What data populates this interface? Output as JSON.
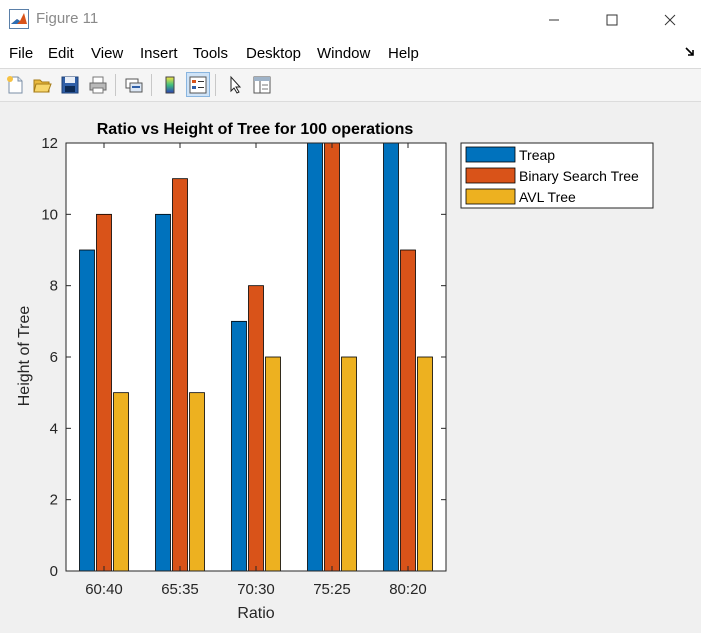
{
  "window": {
    "title": "Figure 11",
    "controls": [
      "minimize",
      "maximize",
      "close"
    ]
  },
  "menubar": {
    "items": [
      "File",
      "Edit",
      "View",
      "Insert",
      "Tools",
      "Desktop",
      "Window",
      "Help"
    ]
  },
  "toolbar": {
    "buttons": [
      "new-figure-icon",
      "open-file-icon",
      "save-icon",
      "print-icon",
      "link-plot-icon",
      "insert-colorbar-icon",
      "insert-legend-icon",
      "edit-plot-icon",
      "property-inspector-icon"
    ]
  },
  "colors": {
    "treap": "#0072BD",
    "bst": "#D95319",
    "avl": "#EDB120"
  },
  "chart_data": {
    "type": "bar",
    "title": "Ratio vs Height of Tree for 100 operations",
    "xlabel": "Ratio",
    "ylabel": "Height of Tree",
    "categories": [
      "60:40",
      "65:35",
      "70:30",
      "75:25",
      "80:20"
    ],
    "ylim": [
      0,
      12
    ],
    "yticks": [
      "0",
      "2",
      "4",
      "6",
      "8",
      "10",
      "12"
    ],
    "legend_position": "outside top-right",
    "grid": false,
    "series": [
      {
        "name": "Treap",
        "values": [
          9,
          10,
          7,
          12,
          12
        ]
      },
      {
        "name": "Binary Search Tree",
        "values": [
          10,
          11,
          8,
          12,
          9
        ]
      },
      {
        "name": "AVL Tree",
        "values": [
          5,
          5,
          6,
          6,
          6
        ]
      }
    ]
  }
}
